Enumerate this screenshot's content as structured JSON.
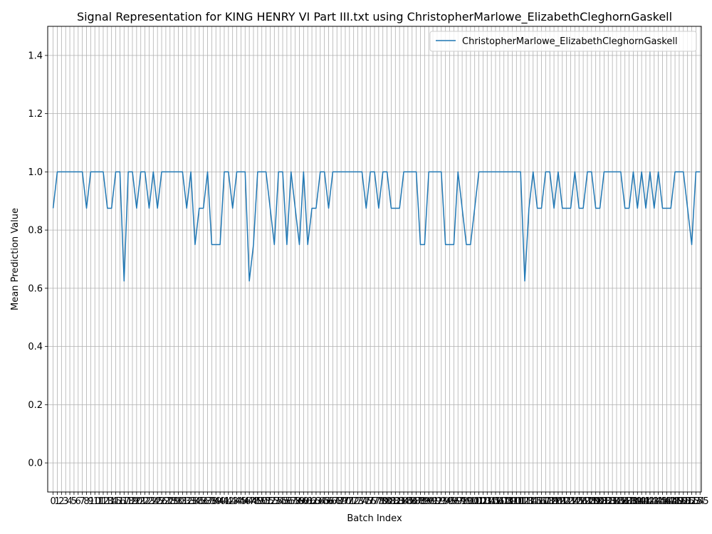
{
  "chart_data": {
    "type": "line",
    "title": "Signal Representation for KING HENRY VI Part III.txt using ChristopherMarlowe_ElizabethCleghornGaskell",
    "xlabel": "Batch Index",
    "ylabel": "Mean Prediction Value",
    "xlim": [
      -1.3,
      155.3
    ],
    "ylim": [
      -0.1,
      1.5
    ],
    "yticks": [
      0.0,
      0.2,
      0.4,
      0.6,
      0.8,
      1.0,
      1.2,
      1.4
    ],
    "grid": true,
    "legend_position": "top-right",
    "colors": {
      "series": "#1f77b4",
      "grid": "#b0b0b0"
    },
    "series": [
      {
        "name": "ChristopherMarlowe_ElizabethCleghornGaskell",
        "values": [
          0.875,
          1,
          1,
          1,
          1,
          1,
          1,
          1,
          0.875,
          1,
          1,
          1,
          1,
          0.875,
          0.875,
          1,
          1,
          0.625,
          1,
          1,
          0.875,
          1,
          1,
          0.875,
          1,
          0.875,
          1,
          1,
          1,
          1,
          1,
          1,
          0.875,
          1,
          0.75,
          0.875,
          0.875,
          1,
          0.75,
          0.75,
          0.75,
          1,
          1,
          0.875,
          1,
          1,
          1,
          0.625,
          0.75,
          1,
          1,
          1,
          0.875,
          0.75,
          1,
          1,
          0.75,
          1,
          0.875,
          0.75,
          1,
          0.75,
          0.875,
          0.875,
          1,
          1,
          0.875,
          1,
          1,
          1,
          1,
          1,
          1,
          1,
          1,
          0.875,
          1,
          1,
          0.875,
          1,
          1,
          0.875,
          0.875,
          0.875,
          1,
          1,
          1,
          1,
          0.75,
          0.75,
          1,
          1,
          1,
          1,
          0.75,
          0.75,
          0.75,
          1,
          0.875,
          0.75,
          0.75,
          0.875,
          1,
          1,
          1,
          1,
          1,
          1,
          1,
          1,
          1,
          1,
          1,
          0.625,
          0.875,
          1,
          0.875,
          0.875,
          1,
          1,
          0.875,
          1,
          0.875,
          0.875,
          0.875,
          1,
          0.875,
          0.875,
          1,
          1,
          0.875,
          0.875,
          1,
          1,
          1,
          1,
          1,
          0.875,
          0.875,
          1,
          0.875,
          1,
          0.875,
          1,
          0.875,
          1,
          0.875,
          0.875,
          0.875,
          1,
          1,
          1,
          0.875,
          0.75,
          1,
          1
        ]
      }
    ]
  }
}
